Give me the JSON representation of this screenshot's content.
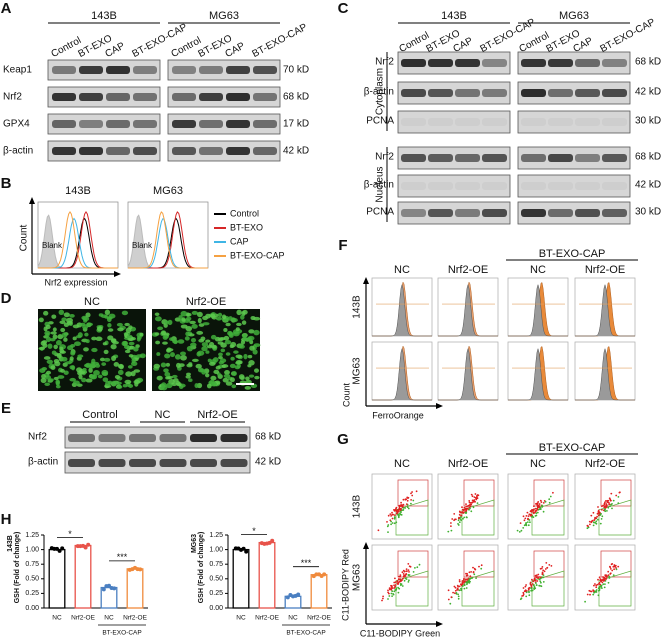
{
  "A": {
    "label": "A",
    "groups": [
      "143B",
      "MG63"
    ],
    "lanes": [
      "Control",
      "BT-EXO",
      "CAP",
      "BT-EXO-CAP"
    ],
    "rows": [
      {
        "name": "Keap1",
        "size": "70 kD"
      },
      {
        "name": "Nrf2",
        "size": "68 kD"
      },
      {
        "name": "GPX4",
        "size": "17 kD"
      },
      {
        "name": "β-actin",
        "size": "42 kD"
      }
    ]
  },
  "B": {
    "label": "B",
    "samples": [
      "143B",
      "MG63"
    ],
    "blank": "Blank",
    "y_label": "Count",
    "x_label": "Nrf2 expression",
    "legend": [
      {
        "name": "Control",
        "color": "#000000"
      },
      {
        "name": "BT-EXO",
        "color": "#d62728"
      },
      {
        "name": "CAP",
        "color": "#3fb5e5"
      },
      {
        "name": "BT-EXO-CAP",
        "color": "#f5a142"
      }
    ]
  },
  "C": {
    "label": "C",
    "groups": [
      "143B",
      "MG63"
    ],
    "lanes": [
      "Control",
      "BT-EXO",
      "CAP",
      "BT-EXO-CAP"
    ],
    "fractions": [
      {
        "name": "Cytoplasm",
        "rows": [
          {
            "name": "Nrf2",
            "size": "68 kD"
          },
          {
            "name": "β-actin",
            "size": "42 kD"
          },
          {
            "name": "PCNA",
            "size": "30 kD"
          }
        ]
      },
      {
        "name": "Nucleus",
        "rows": [
          {
            "name": "Nrf2",
            "size": "68 kD"
          },
          {
            "name": "β-actin",
            "size": "42 kD"
          },
          {
            "name": "PCNA",
            "size": "30 kD"
          }
        ]
      }
    ]
  },
  "D": {
    "label": "D",
    "images": [
      "NC",
      "Nrf2-OE"
    ]
  },
  "E": {
    "label": "E",
    "lanes": [
      "Control",
      "NC",
      "Nrf2-OE"
    ],
    "rows": [
      {
        "name": "Nrf2",
        "size": "68 kD"
      },
      {
        "name": "β-actin",
        "size": "42 kD"
      }
    ]
  },
  "F": {
    "label": "F",
    "treatment": "BT-EXO-CAP",
    "columns": [
      "NC",
      "Nrf2-OE",
      "NC",
      "Nrf2-OE"
    ],
    "rows": [
      "143B",
      "MG63"
    ],
    "y_label": "Count",
    "x_label": "FerroOrange"
  },
  "G": {
    "label": "G",
    "treatment": "BT-EXO-CAP",
    "columns": [
      "NC",
      "Nrf2-OE",
      "NC",
      "Nrf2-OE"
    ],
    "rows": [
      "143B",
      "MG63"
    ],
    "y_label": "C11-BODIPY Red",
    "x_label": "C11-BODIPY Green"
  },
  "H": {
    "label": "H",
    "chart_data": [
      {
        "type": "bar",
        "cell": "143B",
        "y_label": "GSH (Fold of change)",
        "categories": [
          "NC",
          "Nrf2-OE",
          "NC",
          "Nrf2-OE"
        ],
        "group": "BT-EXO-CAP",
        "values": [
          1.0,
          1.07,
          0.35,
          0.67
        ],
        "colors": [
          "#000000",
          "#e8534a",
          "#4a7fc1",
          "#f08a3c"
        ],
        "significance": [
          "*",
          "***"
        ],
        "ylim": [
          0,
          1.25
        ],
        "yticks": [
          {
            "value": 0,
            "label": "0.00"
          },
          {
            "value": 0.25,
            "label": "0.25"
          },
          {
            "value": 0.5,
            "label": "0.50"
          },
          {
            "value": 0.75,
            "label": "0.75"
          },
          {
            "value": 1,
            "label": "1.00"
          },
          {
            "value": 1.25,
            "label": "1.25"
          }
        ]
      },
      {
        "type": "bar",
        "cell": "MG63",
        "y_label": "GSH (Fold of change)",
        "categories": [
          "NC",
          "Nrf2-OE",
          "NC",
          "Nrf2-OE"
        ],
        "group": "BT-EXO-CAP",
        "values": [
          1.0,
          1.12,
          0.2,
          0.57
        ],
        "colors": [
          "#000000",
          "#e8534a",
          "#4a7fc1",
          "#f08a3c"
        ],
        "significance": [
          "*",
          "***"
        ],
        "ylim": [
          0,
          1.25
        ],
        "yticks": [
          {
            "value": 0,
            "label": "0.00"
          },
          {
            "value": 0.25,
            "label": "0.25"
          },
          {
            "value": 0.5,
            "label": "0.50"
          },
          {
            "value": 0.75,
            "label": "0.75"
          },
          {
            "value": 1,
            "label": "1.00"
          },
          {
            "value": 1.25,
            "label": "1.25"
          }
        ]
      }
    ]
  }
}
